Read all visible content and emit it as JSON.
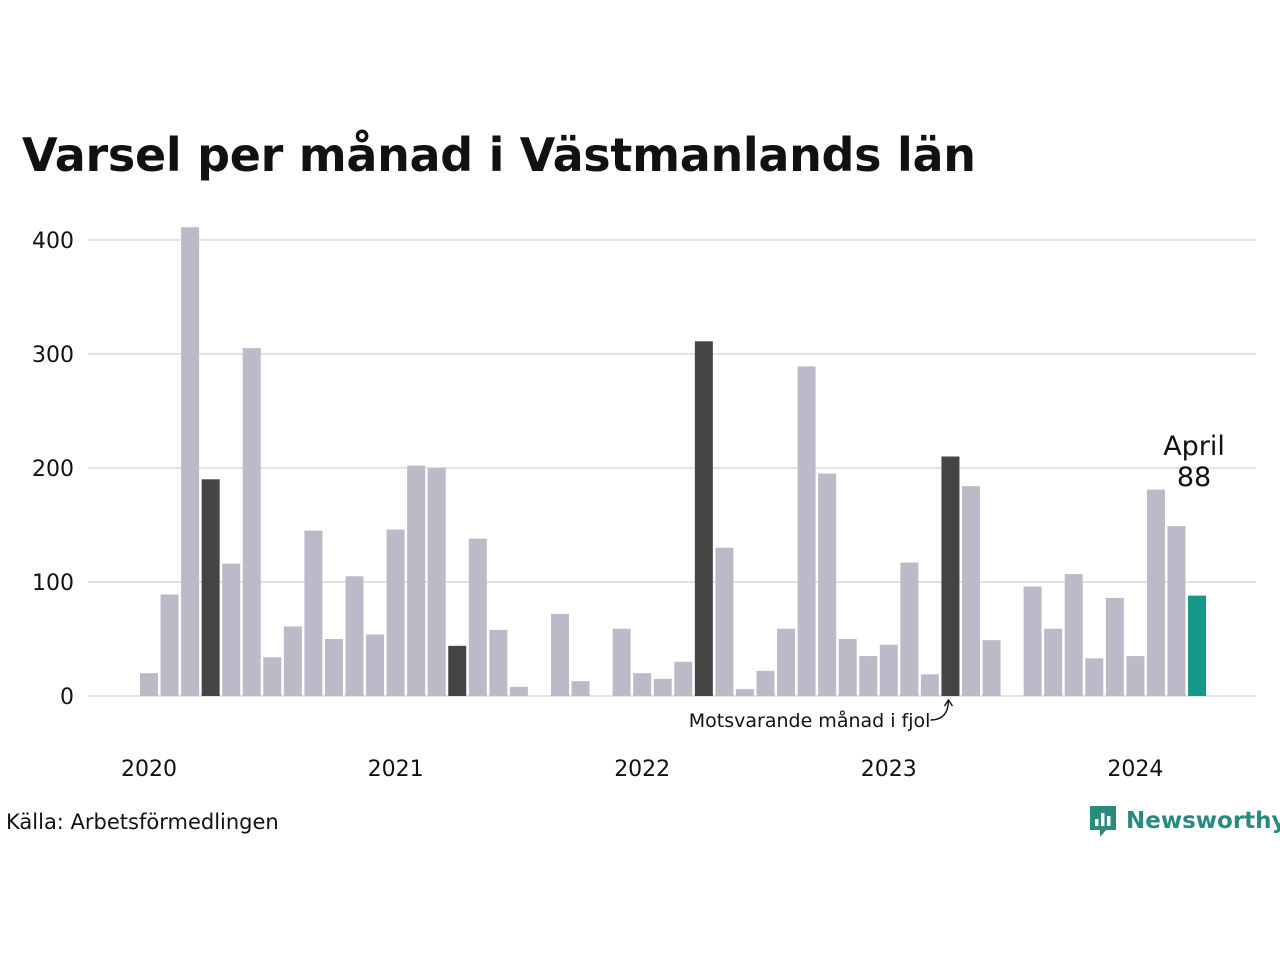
{
  "chart_data": {
    "type": "bar",
    "title": "Varsel per månad i Västmanlands län",
    "xlabel": "",
    "ylabel": "",
    "ylim": [
      0,
      420
    ],
    "y_ticks": [
      0,
      100,
      200,
      300,
      400
    ],
    "year_labels": [
      "2020",
      "2021",
      "2022",
      "2023",
      "2024"
    ],
    "grid": true,
    "values": [
      20,
      89,
      411,
      190,
      116,
      305,
      34,
      61,
      145,
      50,
      105,
      54,
      146,
      202,
      200,
      44,
      138,
      58,
      8,
      0,
      72,
      13,
      0,
      59,
      20,
      15,
      30,
      311,
      130,
      6,
      22,
      59,
      289,
      195,
      50,
      35,
      45,
      117,
      19,
      210,
      184,
      49,
      0,
      96,
      59,
      107,
      33,
      86,
      35,
      181,
      149,
      88
    ],
    "comparison_indices": [
      3,
      15,
      27,
      39
    ],
    "current_index": 51,
    "colors": {
      "bar": "#bcbac8",
      "comparison": "#454545",
      "current": "#14998a",
      "grid": "#e2e2e2"
    },
    "annotation": "Motsvarande månad i fjol",
    "highlight_label": "April",
    "highlight_value": "88"
  },
  "source": "Källa: Arbetsförmedlingen",
  "brand": {
    "name": "Newsworthy",
    "icon": "newsworthy-logo-icon"
  }
}
